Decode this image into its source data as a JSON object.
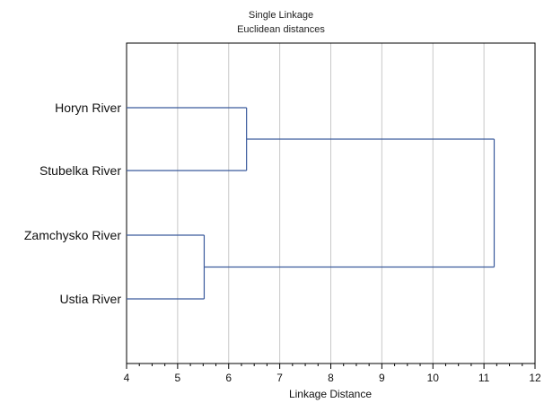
{
  "chart_data": {
    "type": "dendrogram",
    "title": "Single Linkage",
    "subtitle": "Euclidean distances",
    "xlabel": "Linkage Distance",
    "xlim": [
      4,
      12
    ],
    "xticks": [
      4,
      5,
      6,
      7,
      8,
      9,
      10,
      11,
      12
    ],
    "grid": "vertical",
    "leaves": [
      "Horyn River",
      "Stubelka River",
      "Zamchysko River",
      "Ustia River"
    ],
    "merges": [
      {
        "members": [
          "Zamchysko River",
          "Ustia River"
        ],
        "distance": 5.52
      },
      {
        "members": [
          "Horyn River",
          "Stubelka River"
        ],
        "distance": 6.35
      },
      {
        "members": [
          "Horyn River",
          "Stubelka River",
          "Zamchysko River",
          "Ustia River"
        ],
        "distance": 11.2
      }
    ],
    "line_color": "#3a5a9c",
    "grid_color": "#c8c8c8"
  }
}
